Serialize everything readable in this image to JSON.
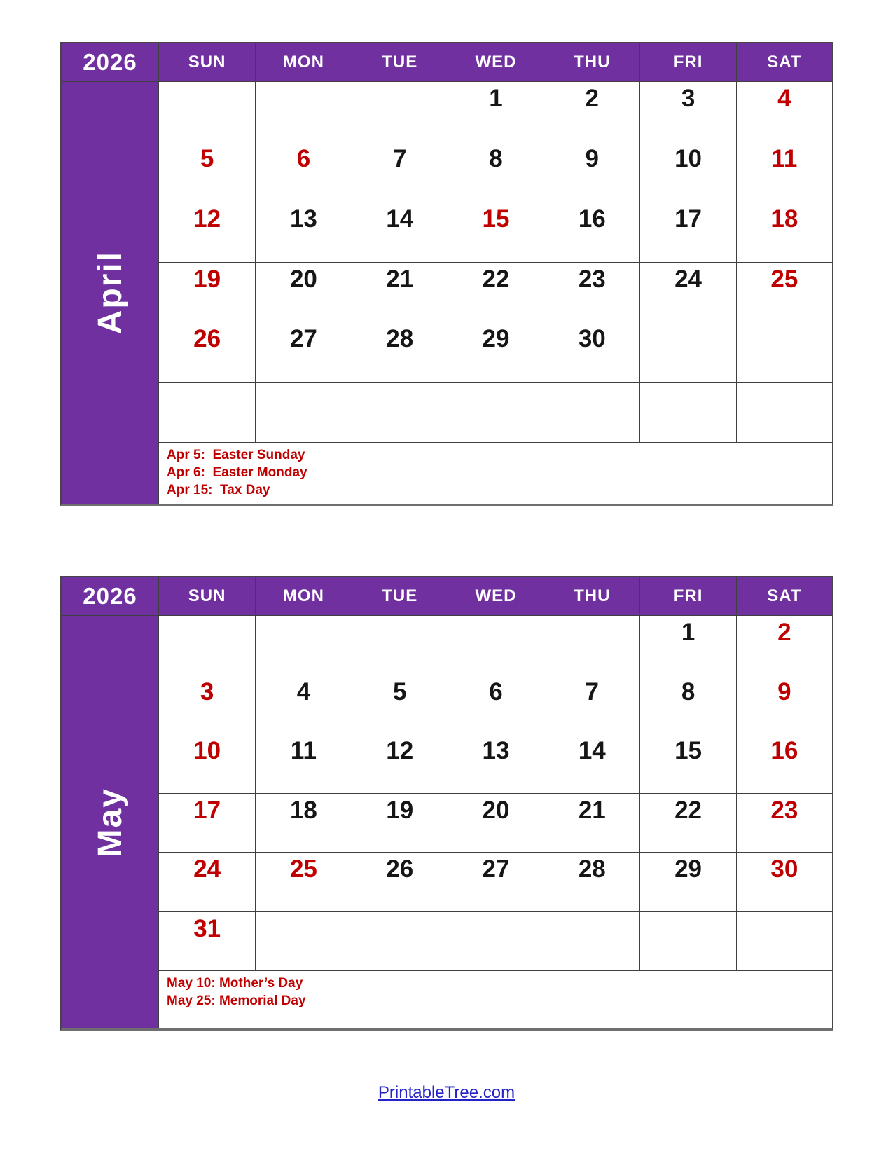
{
  "theme": {
    "purple": "#7030A0",
    "red": "#C00000",
    "text_black": "#161616",
    "grid_line": "#3f3f3f",
    "outer_border": "#464646",
    "bottom_border": "#6f6f6f",
    "link_blue": "#2323C8",
    "page_background": "#ffffff"
  },
  "weekdays": [
    "SUN",
    "MON",
    "TUE",
    "WED",
    "THU",
    "FRI",
    "SAT"
  ],
  "months": [
    {
      "year": "2026",
      "name": "April",
      "weeks": [
        [
          "",
          "",
          "",
          "1",
          "2",
          "3",
          "4"
        ],
        [
          "5",
          "6",
          "7",
          "8",
          "9",
          "10",
          "11"
        ],
        [
          "12",
          "13",
          "14",
          "15",
          "16",
          "17",
          "18"
        ],
        [
          "19",
          "20",
          "21",
          "22",
          "23",
          "24",
          "25"
        ],
        [
          "26",
          "27",
          "28",
          "29",
          "30",
          "",
          ""
        ],
        [
          "",
          "",
          "",
          "",
          "",
          "",
          ""
        ]
      ],
      "red_days": [
        "4",
        "5",
        "6",
        "11",
        "12",
        "15",
        "18",
        "19",
        "25",
        "26"
      ],
      "holidays": [
        "Apr 5:  Easter Sunday",
        "Apr 6:  Easter Monday",
        "Apr 15:  Tax Day"
      ]
    },
    {
      "year": "2026",
      "name": "May",
      "weeks": [
        [
          "",
          "",
          "",
          "",
          "",
          "1",
          "2"
        ],
        [
          "3",
          "4",
          "5",
          "6",
          "7",
          "8",
          "9"
        ],
        [
          "10",
          "11",
          "12",
          "13",
          "14",
          "15",
          "16"
        ],
        [
          "17",
          "18",
          "19",
          "20",
          "21",
          "22",
          "23"
        ],
        [
          "24",
          "25",
          "26",
          "27",
          "28",
          "29",
          "30"
        ],
        [
          "31",
          "",
          "",
          "",
          "",
          "",
          ""
        ]
      ],
      "red_days": [
        "2",
        "3",
        "9",
        "10",
        "16",
        "17",
        "23",
        "24",
        "25",
        "30",
        "31"
      ],
      "holidays": [
        "May 10: Mother’s Day",
        "May 25: Memorial Day"
      ]
    }
  ],
  "footer": {
    "link_text": "PrintableTree.com"
  }
}
